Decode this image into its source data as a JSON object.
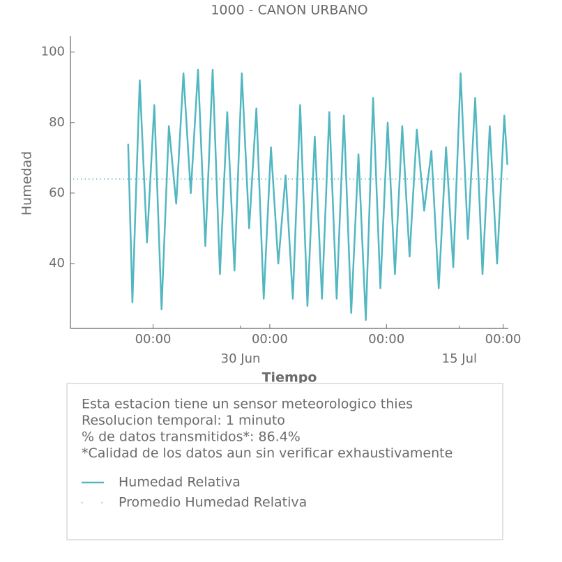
{
  "chart_data": {
    "type": "line",
    "title": "1000 - CANON URBANO",
    "x_label": "Tiempo",
    "y_label": "Humedad",
    "x": [
      "22 Jun 07:00",
      "22 Jun 14:00",
      "23 Jun 02:00",
      "23 Jun 14:00",
      "24 Jun 02:00",
      "24 Jun 14:00",
      "25 Jun 02:00",
      "25 Jun 14:00",
      "26 Jun 02:00",
      "26 Jun 14:00",
      "27 Jun 02:00",
      "27 Jun 14:00",
      "28 Jun 02:00",
      "28 Jun 14:00",
      "29 Jun 02:00",
      "29 Jun 14:00",
      "30 Jun 02:00",
      "30 Jun 14:00",
      "1 Jul 02:00",
      "1 Jul 14:00",
      "2 Jul 02:00",
      "2 Jul 14:00",
      "3 Jul 02:00",
      "3 Jul 14:00",
      "4 Jul 02:00",
      "4 Jul 14:00",
      "5 Jul 02:00",
      "5 Jul 14:00",
      "6 Jul 02:00",
      "6 Jul 14:00",
      "7 Jul 02:00",
      "7 Jul 14:00",
      "8 Jul 02:00",
      "8 Jul 14:00",
      "9 Jul 02:00",
      "9 Jul 14:00",
      "10 Jul 02:00",
      "10 Jul 14:00",
      "11 Jul 02:00",
      "11 Jul 14:00",
      "12 Jul 02:00",
      "12 Jul 14:00",
      "13 Jul 02:00",
      "13 Jul 14:00",
      "14 Jul 02:00",
      "14 Jul 14:00",
      "15 Jul 02:00",
      "15 Jul 14:00",
      "16 Jul 02:00",
      "16 Jul 14:00",
      "17 Jul 02:00",
      "17 Jul 14:00",
      "18 Jul 02:00",
      "18 Jul 07:00"
    ],
    "series": [
      {
        "name": "Humedad Relativa",
        "color": "#52b7c1",
        "values": [
          74,
          29,
          92,
          46,
          85,
          27,
          79,
          57,
          94,
          60,
          95,
          45,
          95,
          37,
          83,
          38,
          94,
          50,
          84,
          30,
          73,
          40,
          65,
          30,
          85,
          28,
          76,
          30,
          83,
          30,
          82,
          26,
          71,
          24,
          87,
          33,
          80,
          37,
          79,
          42,
          78,
          55,
          72,
          33,
          73,
          39,
          94,
          47,
          87,
          37,
          79,
          40,
          82,
          68
        ]
      }
    ],
    "mean": {
      "name": "Promedio Humedad Relativa",
      "value": 64,
      "color": "#52b7c1"
    },
    "xlim": [
      "18 Jun 08:00",
      "18 Jul 08:30"
    ],
    "xticks": [
      {
        "value": "24 Jun 00:00",
        "label": "00:00"
      },
      {
        "value": "2 Jul 00:00",
        "label": "00:00"
      },
      {
        "value": "10 Jul 00:00",
        "label": "00:00"
      },
      {
        "value": "18 Jul 00:00",
        "label": "00:00"
      }
    ],
    "xticks_date": [
      {
        "value": "30 Jun 00:00",
        "label": "30 Jun"
      },
      {
        "value": "15 Jul 00:00",
        "label": "15 Jul"
      }
    ],
    "ylim": [
      21.6,
      104.5
    ],
    "yticks": [
      40,
      60,
      80,
      100
    ],
    "info_lines": [
      "Esta estacion tiene un sensor meteorologico thies",
      "Resolucion temporal: 1 minuto",
      "% de datos transmitidos*: 86.4%",
      "*Calidad de los datos aun sin verificar exhaustivamente"
    ]
  }
}
